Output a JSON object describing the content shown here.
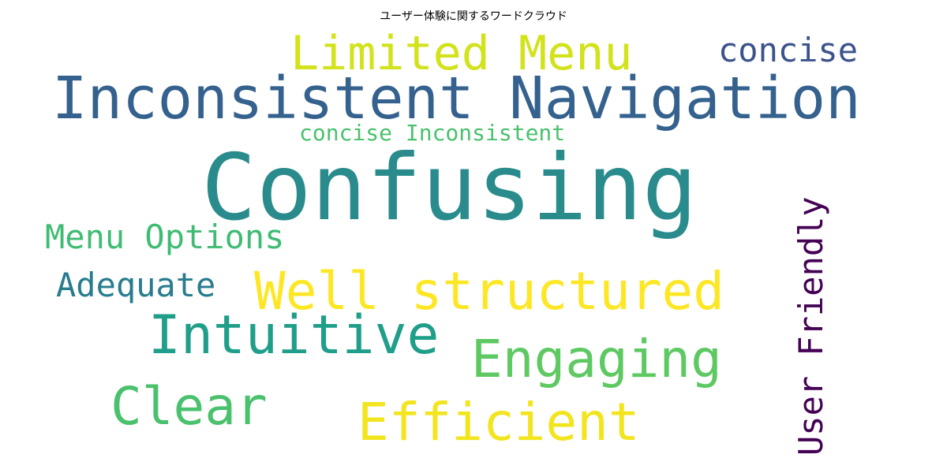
{
  "chart_data": {
    "type": "wordcloud",
    "title": "ユーザー体験に関するワードクラウド",
    "colormap": "viridis",
    "background": "#ffffff",
    "words": [
      {
        "text": "Confusing",
        "weight": 1.0,
        "color": "#2a8b8d"
      },
      {
        "text": "Inconsistent Navigation",
        "weight": 0.62,
        "color": "#34618d"
      },
      {
        "text": "Well structured",
        "weight": 0.52,
        "color": "#fde725"
      },
      {
        "text": "Limited Menu",
        "weight": 0.48,
        "color": "#d2e21b"
      },
      {
        "text": "Efficient",
        "weight": 0.48,
        "color": "#f2e51d"
      },
      {
        "text": "Engaging",
        "weight": 0.48,
        "color": "#5ec962"
      },
      {
        "text": "Intuitive",
        "weight": 0.48,
        "color": "#1f9e89"
      },
      {
        "text": "Clear",
        "weight": 0.48,
        "color": "#4ac16d"
      },
      {
        "text": "User Friendly",
        "weight": 0.38,
        "color": "#440154"
      },
      {
        "text": "concise",
        "weight": 0.33,
        "color": "#3b528b"
      },
      {
        "text": "Menu Options",
        "weight": 0.33,
        "color": "#3fbc73"
      },
      {
        "text": "Adequate",
        "weight": 0.33,
        "color": "#287c8e"
      },
      {
        "text": "concise Inconsistent",
        "weight": 0.22,
        "color": "#4ac16d"
      }
    ]
  }
}
